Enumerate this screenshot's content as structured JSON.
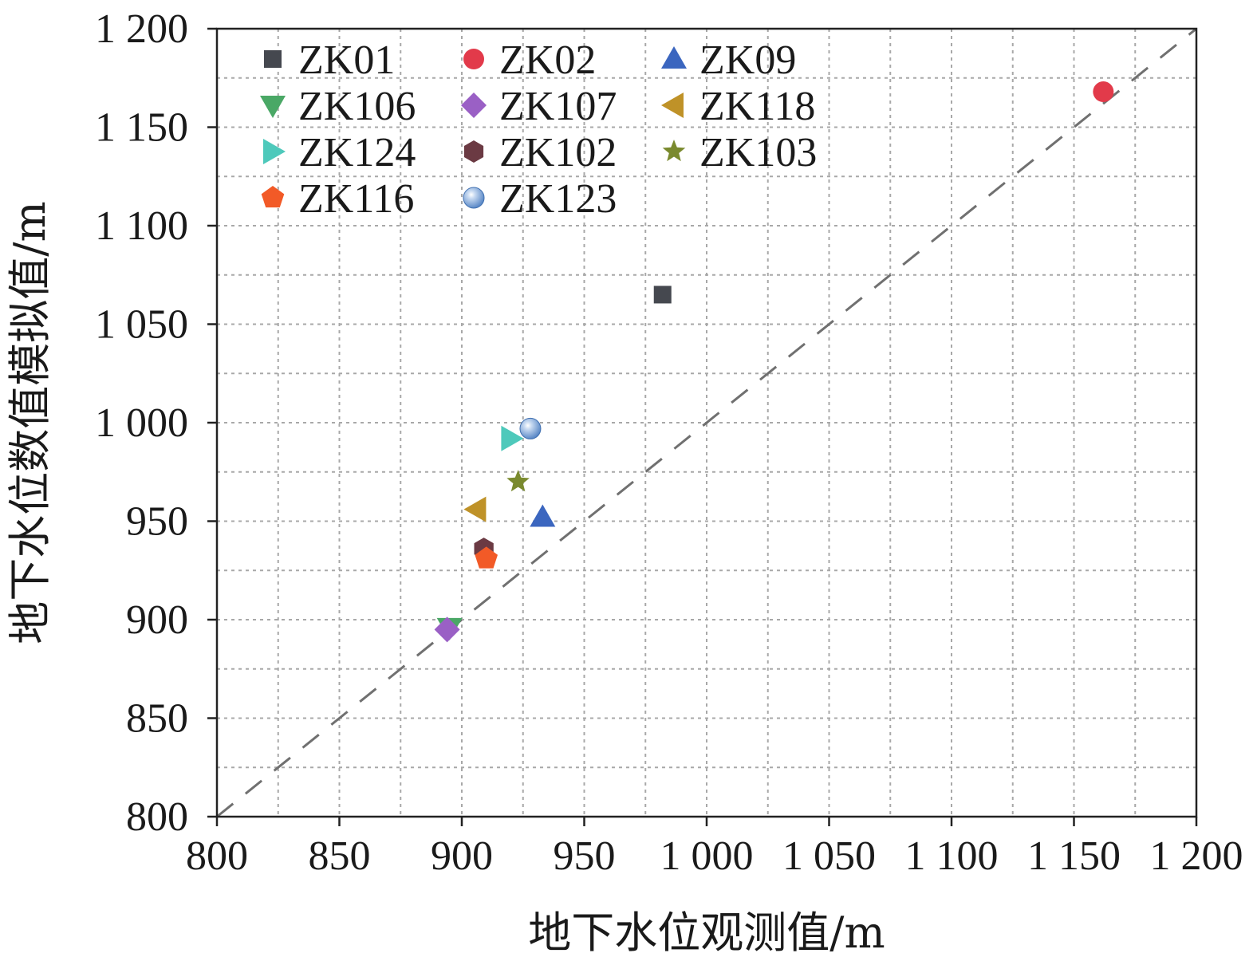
{
  "chart_data": {
    "type": "scatter",
    "xlabel": "地下水位观测值/m",
    "ylabel": "地下水位数值模拟值/m",
    "xlim": [
      800,
      1200
    ],
    "ylim": [
      800,
      1200
    ],
    "xticks": [
      800,
      850,
      900,
      950,
      1000,
      1050,
      1100,
      1150,
      1200
    ],
    "yticks": [
      800,
      850,
      900,
      950,
      1000,
      1050,
      1100,
      1150,
      1200
    ],
    "xtick_labels": [
      "800",
      "850",
      "900",
      "950",
      "1 000",
      "1 050",
      "1 100",
      "1 150",
      "1 200"
    ],
    "ytick_labels": [
      "800",
      "850",
      "900",
      "950",
      "1 000",
      "1 050",
      "1 100",
      "1 150",
      "1 200"
    ],
    "grid": true,
    "reference_line": "y = x",
    "legend_position": "top-left",
    "series": [
      {
        "name": "ZK01",
        "marker": "square",
        "color": "#45484f",
        "x": 982,
        "y": 1065
      },
      {
        "name": "ZK02",
        "marker": "circle",
        "color": "#e23a4a",
        "x": 1162,
        "y": 1168
      },
      {
        "name": "ZK09",
        "marker": "triangle-up",
        "color": "#3b66bf",
        "x": 933,
        "y": 952
      },
      {
        "name": "ZK106",
        "marker": "triangle-down",
        "color": "#4aa866",
        "x": 895,
        "y": 896
      },
      {
        "name": "ZK107",
        "marker": "diamond",
        "color": "#9a60c5",
        "x": 894,
        "y": 895
      },
      {
        "name": "ZK118",
        "marker": "triangle-left",
        "color": "#bf9228",
        "x": 906,
        "y": 956
      },
      {
        "name": "ZK124",
        "marker": "triangle-right",
        "color": "#4ec9bb",
        "x": 920,
        "y": 992
      },
      {
        "name": "ZK102",
        "marker": "hexagon",
        "color": "#6b3a43",
        "x": 909,
        "y": 936
      },
      {
        "name": "ZK103",
        "marker": "star",
        "color": "#7a8a2e",
        "x": 923,
        "y": 970
      },
      {
        "name": "ZK116",
        "marker": "pentagon",
        "color": "#f25a27",
        "x": 910,
        "y": 931
      },
      {
        "name": "ZK123",
        "marker": "sphere",
        "color": "#6a95cc",
        "x": 928,
        "y": 997
      }
    ]
  }
}
